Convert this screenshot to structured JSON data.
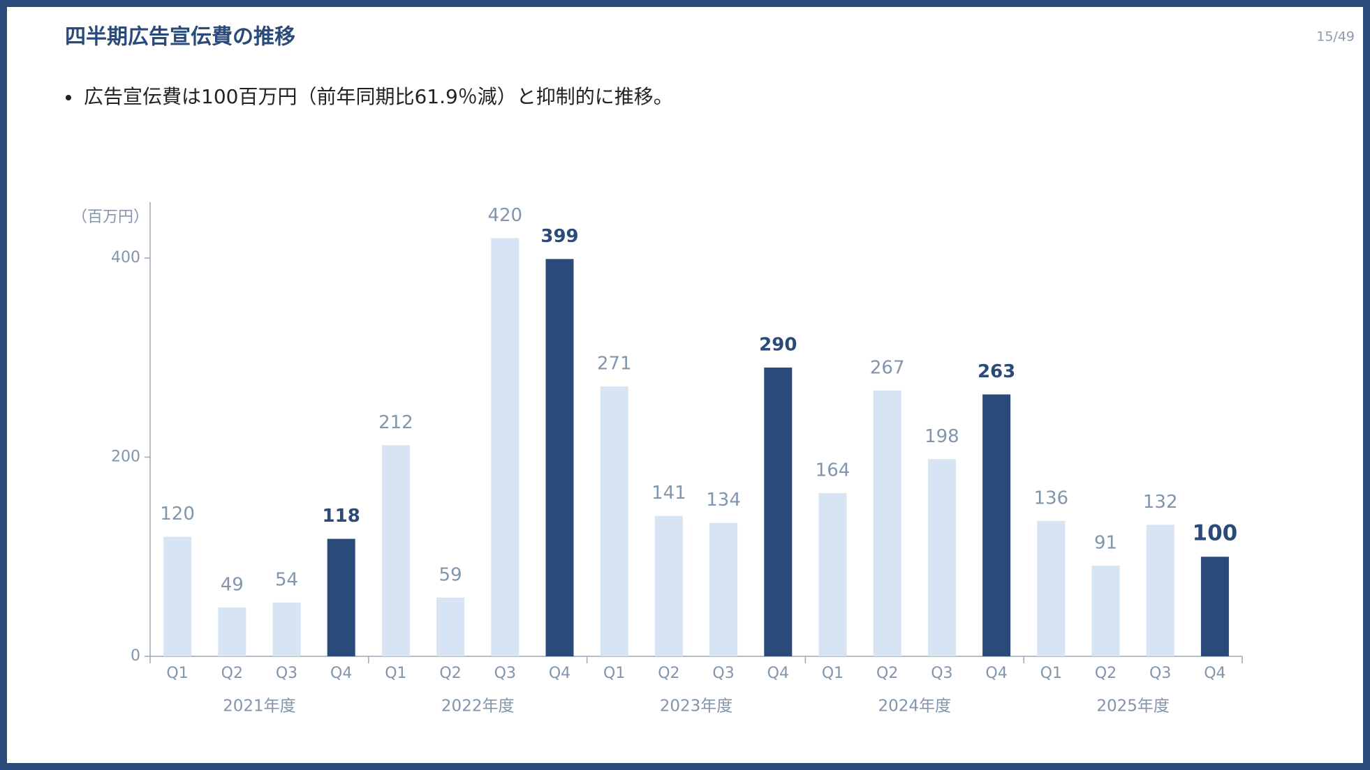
{
  "header": {
    "title": "四半期広告宣伝費の推移",
    "page": "15/49"
  },
  "bullet": "広告宣伝費は100百万円（前年同期比61.9％減）と抑制的に推移。",
  "chart_data": {
    "type": "bar",
    "y_unit": "（百万円）",
    "categories": [
      "Q1",
      "Q2",
      "Q3",
      "Q4",
      "Q1",
      "Q2",
      "Q3",
      "Q4",
      "Q1",
      "Q2",
      "Q3",
      "Q4",
      "Q1",
      "Q2",
      "Q3",
      "Q4",
      "Q1",
      "Q2",
      "Q3",
      "Q4"
    ],
    "groups": [
      "2021年度",
      "2022年度",
      "2023年度",
      "2024年度",
      "2025年度"
    ],
    "values": [
      120,
      49,
      54,
      118,
      212,
      59,
      420,
      399,
      271,
      141,
      134,
      290,
      164,
      267,
      198,
      263,
      136,
      91,
      132,
      100
    ],
    "color": "#d6e4f3",
    "colors": [
      "#d6e4f3",
      "#d6e4f3",
      "#d6e4f3",
      "#2a4a7a",
      "#d6e4f3",
      "#d6e4f3",
      "#d6e4f3",
      "#2a4a7a",
      "#d6e4f3",
      "#d6e4f3",
      "#d6e4f3",
      "#2a4a7a",
      "#d6e4f3",
      "#d6e4f3",
      "#d6e4f3",
      "#2a4a7a",
      "#d6e4f3",
      "#d6e4f3",
      "#d6e4f3",
      "#2a4a7a"
    ],
    "label_color": "#8195ad",
    "ylim": [
      0,
      456
    ],
    "yticks": [
      0,
      200,
      400
    ],
    "grid": false
  }
}
